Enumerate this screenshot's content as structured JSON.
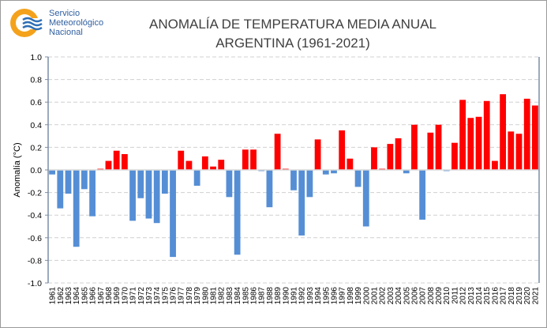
{
  "logo": {
    "lines": [
      "Servicio",
      "Meteorológico",
      "Nacional"
    ]
  },
  "chart_data": {
    "type": "bar",
    "title": [
      "ANOMALÍA DE TEMPERATURA MEDIA ANUAL",
      "ARGENTINA (1961-2021)"
    ],
    "xlabel": "",
    "ylabel": "Anomalía (°C)",
    "ylim": [
      -1.0,
      1.0
    ],
    "yticks": [
      "1.0",
      "0.8",
      "0.6",
      "0.4",
      "0.2",
      "0.0",
      "-0.2",
      "-0.4",
      "-0.6",
      "-0.8",
      "-1.0"
    ],
    "grid": true,
    "colors": {
      "positive": "#ff0000",
      "negative": "#558ed5"
    },
    "categories": [
      "1961",
      "1962",
      "1963",
      "1964",
      "1965",
      "1966",
      "1967",
      "1968",
      "1969",
      "1970",
      "1971",
      "1972",
      "1973",
      "1974",
      "1975",
      "1976",
      "1977",
      "1978",
      "1979",
      "1980",
      "1981",
      "1982",
      "1983",
      "1984",
      "1985",
      "1986",
      "1987",
      "1988",
      "1989",
      "1990",
      "1991",
      "1992",
      "1993",
      "1994",
      "1995",
      "1996",
      "1997",
      "1998",
      "1999",
      "2000",
      "2001",
      "2002",
      "2003",
      "2004",
      "2005",
      "2006",
      "2007",
      "2008",
      "2009",
      "2010",
      "2011",
      "2012",
      "2013",
      "2014",
      "2015",
      "2016",
      "2017",
      "2018",
      "2019",
      "2020",
      "2021"
    ],
    "values": [
      -0.04,
      -0.34,
      -0.21,
      -0.68,
      -0.17,
      -0.41,
      0.01,
      0.08,
      0.17,
      0.14,
      -0.45,
      -0.25,
      -0.43,
      -0.47,
      -0.21,
      -0.77,
      0.17,
      0.08,
      -0.14,
      0.12,
      0.03,
      0.09,
      -0.24,
      -0.75,
      0.18,
      0.18,
      -0.01,
      -0.33,
      0.32,
      0.01,
      -0.18,
      -0.58,
      -0.24,
      0.27,
      -0.04,
      -0.03,
      0.35,
      0.1,
      -0.15,
      -0.5,
      0.2,
      0.01,
      0.23,
      0.28,
      -0.03,
      0.4,
      -0.44,
      0.33,
      0.4,
      -0.01,
      0.24,
      0.62,
      0.46,
      0.47,
      0.61,
      0.08,
      0.67,
      0.34,
      0.32,
      0.63,
      0.57
    ]
  }
}
